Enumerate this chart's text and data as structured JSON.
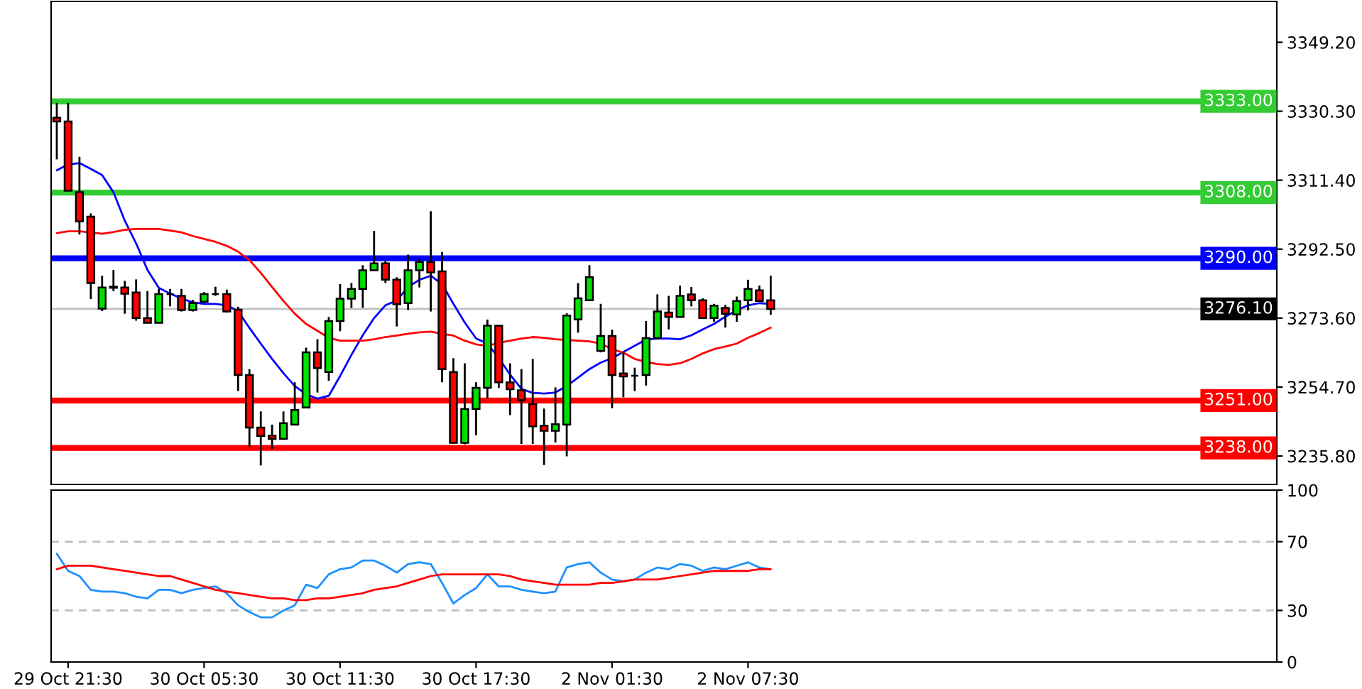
{
  "chart_data": [
    {
      "type": "candlestick",
      "categories": [
        null,
        null,
        null,
        null,
        null,
        null,
        null,
        null,
        null,
        null,
        null,
        null,
        null,
        null,
        null,
        null,
        null,
        null,
        null,
        null,
        null,
        null,
        null,
        null,
        null,
        null,
        null,
        null,
        null,
        null,
        null,
        null,
        null,
        null,
        null,
        null,
        null,
        null,
        null,
        null,
        null,
        null,
        null,
        null,
        null,
        null,
        null,
        null,
        null,
        null,
        null,
        null,
        null,
        null,
        null,
        null,
        null,
        null,
        null,
        null,
        null,
        null,
        null,
        null
      ],
      "ohlc": [
        [
          3328.5,
          3332.6,
          3317.1,
          3327.5
        ],
        [
          3327.5,
          3332.6,
          3308.5,
          3308.5
        ],
        [
          3308.1,
          3317.8,
          3296.5,
          3300.1
        ],
        [
          3301.4,
          3302.3,
          3278.8,
          3283.2
        ],
        [
          3276.2,
          3285.2,
          3275.5,
          3282.0
        ],
        [
          3282.2,
          3286.8,
          3281.0,
          3281.9
        ],
        [
          3282.0,
          3283.8,
          3274.8,
          3280.3
        ],
        [
          3280.6,
          3284.2,
          3272.9,
          3273.6
        ],
        [
          3273.6,
          3281.0,
          3272.3,
          3272.3
        ],
        [
          3272.3,
          3281.6,
          3272.3,
          3280.2
        ],
        [
          3280.2,
          3281.6,
          3276.8,
          3280.2
        ],
        [
          3279.7,
          3281.6,
          3275.4,
          3275.8
        ],
        [
          3275.8,
          3278.6,
          3275.4,
          3277.7
        ],
        [
          3278.1,
          3280.7,
          3277.7,
          3280.2
        ],
        [
          3280.2,
          3282.2,
          3279.7,
          3280.2
        ],
        [
          3280.2,
          3281.4,
          3275.1,
          3275.4
        ],
        [
          3275.9,
          3276.7,
          3253.6,
          3258.0
        ],
        [
          3258.0,
          3259.6,
          3238.3,
          3243.6
        ],
        [
          3243.6,
          3248.0,
          3233.2,
          3241.3
        ],
        [
          3241.4,
          3244.4,
          3237.7,
          3240.5
        ],
        [
          3240.5,
          3248.0,
          3240.5,
          3244.8
        ],
        [
          3244.4,
          3256.0,
          3244.4,
          3248.4
        ],
        [
          3249.1,
          3265.5,
          3249.1,
          3264.2
        ],
        [
          3264.2,
          3267.8,
          3253.2,
          3259.9
        ],
        [
          3258.8,
          3273.9,
          3256.4,
          3272.8
        ],
        [
          3272.8,
          3282.9,
          3270.0,
          3278.9
        ],
        [
          3278.9,
          3283.2,
          3276.4,
          3281.6
        ],
        [
          3281.6,
          3288.1,
          3276.4,
          3286.7
        ],
        [
          3286.7,
          3297.5,
          3286.7,
          3288.6
        ],
        [
          3288.6,
          3289.4,
          3283.2,
          3284.1
        ],
        [
          3284.1,
          3284.8,
          3271.3,
          3277.4
        ],
        [
          3277.7,
          3291.0,
          3275.8,
          3286.7
        ],
        [
          3286.7,
          3290.0,
          3282.0,
          3289.0
        ],
        [
          3289.0,
          3302.9,
          3275.4,
          3286.1
        ],
        [
          3286.4,
          3291.7,
          3256.0,
          3259.6
        ],
        [
          3258.8,
          3262.6,
          3239.4,
          3239.4
        ],
        [
          3239.4,
          3261.2,
          3239.0,
          3248.7
        ],
        [
          3248.7,
          3256.0,
          3241.5,
          3254.5
        ],
        [
          3254.5,
          3273.2,
          3251.6,
          3271.5
        ],
        [
          3271.5,
          3271.5,
          3254.5,
          3256.0
        ],
        [
          3256.0,
          3261.2,
          3247.0,
          3254.1
        ],
        [
          3253.8,
          3259.6,
          3239.1,
          3251.1
        ],
        [
          3250.0,
          3262.4,
          3239.1,
          3243.9
        ],
        [
          3244.1,
          3248.8,
          3233.3,
          3242.7
        ],
        [
          3242.7,
          3254.6,
          3239.5,
          3244.5
        ],
        [
          3244.4,
          3274.9,
          3235.7,
          3274.3
        ],
        [
          3273.2,
          3283.2,
          3269.6,
          3279.0
        ],
        [
          3278.5,
          3288.1,
          3278.5,
          3284.8
        ],
        [
          3264.6,
          3277.5,
          3264.2,
          3268.7
        ],
        [
          3268.7,
          3270.4,
          3248.9,
          3258.0
        ],
        [
          3258.4,
          3264.2,
          3251.9,
          3257.6
        ],
        [
          3257.8,
          3260.0,
          3253.6,
          3257.8
        ],
        [
          3258.0,
          3272.8,
          3255.1,
          3268.1
        ],
        [
          3268.1,
          3280.1,
          3268.1,
          3275.4
        ],
        [
          3275.1,
          3279.7,
          3270.5,
          3273.9
        ],
        [
          3273.9,
          3282.5,
          3273.9,
          3279.7
        ],
        [
          3280.1,
          3282.1,
          3276.8,
          3278.5
        ],
        [
          3278.5,
          3279.0,
          3273.6,
          3273.6
        ],
        [
          3273.6,
          3277.5,
          3272.6,
          3277.0
        ],
        [
          3276.4,
          3277.2,
          3271.0,
          3274.8
        ],
        [
          3274.6,
          3279.5,
          3272.6,
          3278.3
        ],
        [
          3278.5,
          3284.1,
          3275.7,
          3281.6
        ],
        [
          3281.2,
          3282.5,
          3278.3,
          3278.3
        ],
        [
          3278.5,
          3285.2,
          3274.5,
          3276.1
        ]
      ],
      "colors": [
        "#ff0000",
        "#ff0000",
        "#ff0000",
        "#ff0000",
        "#00e000",
        "#ff0000",
        "#ff0000",
        "#ff0000",
        "#ff0000",
        "#00e000",
        "#000000",
        "#ff0000",
        "#00e000",
        "#00e000",
        "#000000",
        "#ff0000",
        "#ff0000",
        "#ff0000",
        "#ff0000",
        "#ff0000",
        "#00e000",
        "#00e000",
        "#00e000",
        "#ff0000",
        "#00e000",
        "#00e000",
        "#00e000",
        "#00e000",
        "#00e000",
        "#ff0000",
        "#ff0000",
        "#00e000",
        "#00e000",
        "#ff0000",
        "#ff0000",
        "#ff0000",
        "#00e000",
        "#00e000",
        "#00e000",
        "#ff0000",
        "#ff0000",
        "#ff0000",
        "#ff0000",
        "#ff0000",
        "#00e000",
        "#00e000",
        "#00e000",
        "#00e000",
        "#00e000",
        "#ff0000",
        "#ff0000",
        "#000000",
        "#00e000",
        "#00e000",
        "#ff0000",
        "#00e000",
        "#ff0000",
        "#ff0000",
        "#00e000",
        "#ff0000",
        "#00e000",
        "#00e000",
        "#ff0000",
        "#ff0000"
      ],
      "series": [
        {
          "type": "line",
          "color": "#0000ff",
          "values": [
            3314.1,
            3315.7,
            3316.1,
            3314.5,
            3312.8,
            3308.1,
            3300.3,
            3294.1,
            3286.8,
            3281.9,
            3280.3,
            3279.0,
            3277.9,
            3277.5,
            3277.5,
            3277.1,
            3275.5,
            3270.9,
            3266.6,
            3262.4,
            3258.5,
            3255.0,
            3252.7,
            3251.5,
            3252.3,
            3257.7,
            3263.5,
            3268.9,
            3273.6,
            3277.1,
            3278.4,
            3282.1,
            3284.1,
            3285.2,
            3282.9,
            3277.5,
            3272.4,
            3268.0,
            3266.6,
            3262.7,
            3258.1,
            3254.2,
            3253.1,
            3252.9,
            3253.2,
            3255.0,
            3257.3,
            3259.6,
            3261.4,
            3262.6,
            3264.3,
            3266.0,
            3267.7,
            3268.0,
            3268.0,
            3267.8,
            3268.9,
            3270.5,
            3272.0,
            3274.0,
            3275.7,
            3277.1,
            3277.7,
            3277.5
          ]
        },
        {
          "type": "line",
          "color": "#ff0000",
          "values": [
            3296.9,
            3297.4,
            3297.4,
            3297.1,
            3296.7,
            3297.2,
            3297.8,
            3298.0,
            3298.0,
            3298.0,
            3297.6,
            3297.1,
            3296.1,
            3295.3,
            3294.5,
            3293.4,
            3291.8,
            3289.5,
            3286.0,
            3282.1,
            3278.3,
            3274.8,
            3272.0,
            3270.1,
            3268.2,
            3267.4,
            3267.4,
            3267.4,
            3267.8,
            3268.4,
            3268.8,
            3269.3,
            3269.7,
            3269.9,
            3269.3,
            3268.8,
            3267.4,
            3266.4,
            3266.0,
            3266.8,
            3267.4,
            3268.0,
            3268.4,
            3268.2,
            3267.8,
            3267.6,
            3267.4,
            3267.2,
            3266.6,
            3265.1,
            3264.1,
            3262.4,
            3261.6,
            3261.0,
            3260.8,
            3261.2,
            3262.4,
            3263.9,
            3265.1,
            3265.8,
            3266.6,
            3268.2,
            3269.5,
            3271.0
          ]
        }
      ],
      "ylim": [
        3228.0,
        3360.4
      ],
      "yticks": [
        {
          "value": 3235.8,
          "label": "3235.80"
        },
        {
          "value": 3254.7,
          "label": "3254.70"
        },
        {
          "value": 3273.6,
          "label": "3273.60"
        },
        {
          "value": 3292.5,
          "label": "3292.50"
        },
        {
          "value": 3311.4,
          "label": "3311.40"
        },
        {
          "value": 3330.3,
          "label": "3330.30"
        },
        {
          "value": 3349.2,
          "label": "3349.20"
        }
      ],
      "ref_lines": [
        {
          "axis": "y",
          "value": 3333.0,
          "label": "3333.00",
          "color": "#33cc33"
        },
        {
          "axis": "y",
          "value": 3308.0,
          "label": "3308.00",
          "color": "#33cc33"
        },
        {
          "axis": "y",
          "value": 3290.0,
          "label": "3290.00",
          "color": "#0000ff"
        },
        {
          "axis": "y",
          "value": 3276.1,
          "label": "3276.10",
          "color": "#c0c0c0"
        },
        {
          "axis": "y",
          "value": 3251.0,
          "label": "3251.00",
          "color": "#ff0000"
        },
        {
          "axis": "y",
          "value": 3238.0,
          "label": "3238.00",
          "color": "#ff0000"
        }
      ],
      "tick_labels": "y"
    },
    {
      "type": "line",
      "categories": [
        null,
        "29 Oct 21:30",
        null,
        null,
        null,
        null,
        null,
        null,
        null,
        null,
        null,
        null,
        null,
        "30 Oct 05:30",
        null,
        null,
        null,
        null,
        null,
        null,
        null,
        null,
        null,
        null,
        null,
        "30 Oct 11:30",
        null,
        null,
        null,
        null,
        null,
        null,
        null,
        null,
        null,
        null,
        null,
        "30 Oct 17:30",
        null,
        null,
        null,
        null,
        null,
        null,
        null,
        null,
        null,
        null,
        null,
        "2 Nov 01:30",
        null,
        null,
        null,
        null,
        null,
        null,
        null,
        null,
        null,
        null,
        null,
        "2 Nov 07:30",
        null,
        null
      ],
      "series": [
        {
          "color": "#1e90ff",
          "values": [
            63,
            53,
            50,
            42,
            41,
            41,
            40,
            38,
            37,
            42,
            42,
            40,
            42,
            43,
            44,
            40,
            33,
            29,
            26,
            26,
            30,
            33,
            45,
            43,
            51,
            54,
            55,
            59,
            59,
            56,
            52,
            57,
            58,
            57,
            46,
            34,
            39,
            43,
            51,
            44,
            44,
            42,
            41,
            40,
            41,
            55,
            57,
            58,
            52,
            48,
            47,
            48,
            52,
            55,
            54,
            57,
            56,
            53,
            55,
            54,
            56,
            58,
            55,
            54
          ]
        },
        {
          "color": "#ff0000",
          "values": [
            54,
            56,
            56,
            56,
            55,
            54,
            53,
            52,
            51,
            50,
            50,
            48,
            46,
            44,
            42,
            41,
            40,
            39,
            38,
            37,
            37,
            36,
            36,
            37,
            37,
            38,
            39,
            40,
            42,
            43,
            44,
            46,
            48,
            50,
            51,
            51,
            51,
            51,
            51,
            51,
            50,
            48,
            47,
            46,
            45,
            45,
            45,
            45,
            46,
            46,
            47,
            48,
            48,
            48,
            49,
            50,
            51,
            52,
            53,
            53,
            53,
            53,
            54,
            54
          ]
        }
      ],
      "ylim": [
        0,
        100
      ],
      "yticks": [
        0,
        30,
        70,
        100
      ],
      "ref_lines": [
        {
          "axis": "y",
          "value": 70,
          "color": "#c0c0c0",
          "line_style": "dashed"
        },
        {
          "axis": "y",
          "value": 30,
          "color": "#c0c0c0",
          "line_style": "dashed"
        }
      ]
    }
  ]
}
